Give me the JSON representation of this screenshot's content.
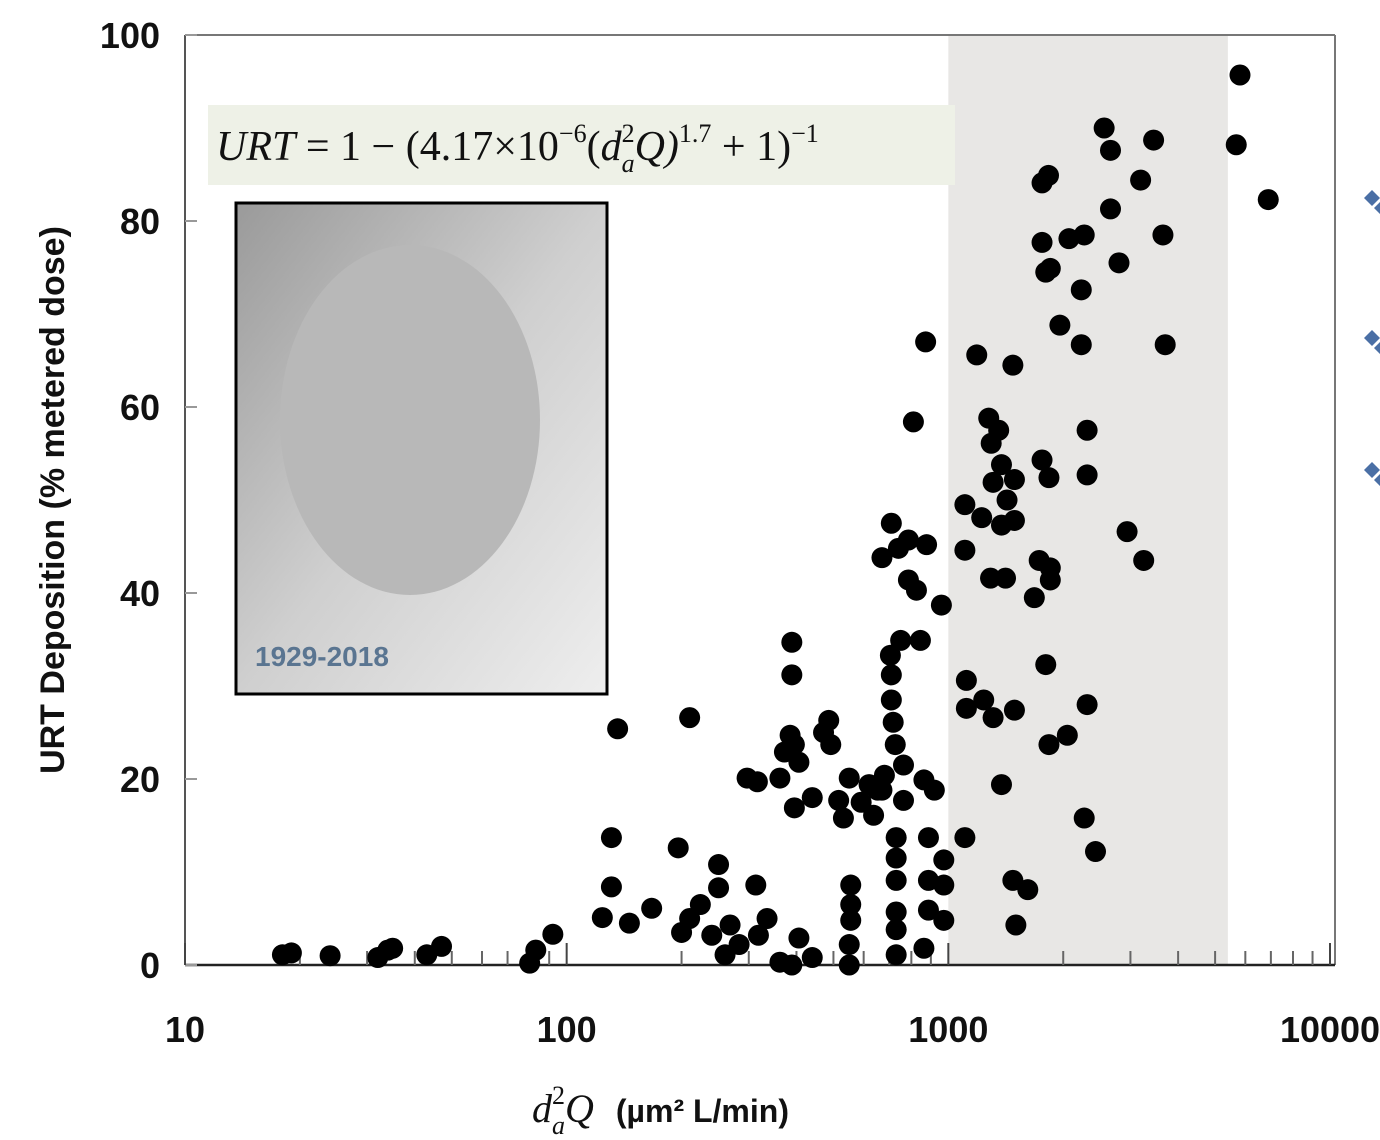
{
  "chart_data": {
    "type": "scatter",
    "xlabel": {
      "var": "d",
      "sup": "2",
      "sub": "a",
      "q": "Q",
      "units": "(µm² L/min)"
    },
    "ylabel": "URT Deposition  (% metered dose)",
    "formula": {
      "lhs": "URT",
      "eq": " = 1 − (4.17×10",
      "exp1": "−6",
      "open": "(",
      "var": "d",
      "sup": "2",
      "sub": "a",
      "q": "Q)",
      "exp2": "1.7",
      "plus": " + 1)",
      "exp3": "−1"
    },
    "photo_caption": "1929-2018",
    "log_x": true,
    "xlim": [
      10,
      10000
    ],
    "xticks": [
      10,
      100,
      1000,
      10000
    ],
    "minor_xticks": [
      20,
      30,
      40,
      50,
      60,
      70,
      80,
      90,
      200,
      300,
      400,
      500,
      600,
      700,
      800,
      900,
      2000,
      3000,
      4000,
      5000,
      6000,
      7000,
      8000,
      9000
    ],
    "ylim": [
      0,
      100
    ],
    "yticks": [
      0,
      20,
      40,
      60,
      80,
      100
    ],
    "shaded_band": [
      1000,
      5400
    ],
    "band_color": "#e8e7e5",
    "color": "#000000",
    "x": [
      18,
      19,
      24,
      32,
      34,
      35,
      43,
      47,
      80,
      83,
      92,
      136,
      131,
      131,
      124,
      146,
      167,
      196,
      200,
      210,
      210,
      224,
      240,
      250,
      250,
      260,
      268,
      283,
      297,
      316,
      313,
      318,
      335,
      362,
      372,
      385,
      389,
      389,
      395,
      395,
      406,
      406,
      362,
      389,
      440,
      440,
      471,
      486,
      492,
      516,
      531,
      550,
      555,
      555,
      555,
      550,
      550,
      591,
      620,
      637,
      653,
      670,
      680,
      705,
      709,
      709,
      717,
      726,
      709,
      670,
      740,
      750,
      763,
      763,
      730,
      730,
      730,
      730,
      730,
      730,
      786,
      786,
      810,
      825,
      845,
      863,
      872,
      877,
      887,
      887,
      887,
      919,
      959,
      973,
      973,
      863,
      973,
      1105,
      1105,
      1105,
      1115,
      1115,
      1187,
      1223,
      1238,
      1276,
      1295,
      1310,
      1290,
      1310,
      1355,
      1378,
      1378,
      1378,
      1412,
      1425,
      1476,
      1490,
      1490,
      1476,
      1503,
      1615,
      1680,
      1730,
      1760,
      1800,
      1760,
      1830,
      1760,
      1800,
      1850,
      1835,
      1850,
      1850,
      1835,
      1960,
      2050,
      2070,
      2270,
      2230,
      2230,
      2310,
      2310,
      2310,
      2270,
      2430,
      2560,
      2660,
      2660,
      2800,
      2940,
      3190,
      3250,
      3450,
      3650,
      3700,
      5680,
      5810,
      6890,
      1490
    ],
    "values": [
      1.1,
      1.3,
      1,
      0.8,
      1.6,
      1.8,
      1.1,
      2,
      0.2,
      1.6,
      3.3,
      25.4,
      13.7,
      8.4,
      5.1,
      4.5,
      6.1,
      12.6,
      3.5,
      26.6,
      5,
      6.5,
      3.2,
      10.8,
      8.3,
      1.1,
      4.3,
      2.2,
      20.1,
      19.7,
      8.6,
      3.2,
      5,
      20.1,
      22.9,
      24.7,
      34.7,
      31.2,
      23.7,
      16.9,
      21.8,
      2.9,
      0.3,
      0,
      0.8,
      18,
      25,
      26.3,
      23.7,
      17.7,
      15.8,
      20.1,
      8.6,
      6.5,
      4.8,
      2.2,
      0,
      17.5,
      19.4,
      16.1,
      18.8,
      18.8,
      20.4,
      33.3,
      31.2,
      28.5,
      26.1,
      23.7,
      47.5,
      43.8,
      44.8,
      34.9,
      21.5,
      17.7,
      13.7,
      11.5,
      9.1,
      5.7,
      3.8,
      1.1,
      45.7,
      41.4,
      58.4,
      40.3,
      34.9,
      19.9,
      67,
      45.2,
      13.7,
      9.1,
      5.9,
      18.8,
      38.7,
      11.3,
      8.6,
      1.8,
      4.8,
      13.7,
      49.5,
      44.6,
      30.6,
      27.6,
      65.6,
      48.1,
      28.5,
      58.8,
      56.1,
      51.9,
      41.6,
      26.6,
      57.5,
      53.8,
      47.3,
      19.4,
      41.6,
      50,
      64.5,
      47.8,
      27.4,
      9.1,
      4.3,
      8.1,
      39.5,
      43.5,
      54.3,
      32.3,
      84.1,
      84.9,
      77.7,
      74.5,
      74.9,
      52.4,
      42.7,
      41.4,
      23.7,
      68.8,
      24.7,
      78.1,
      78.5,
      72.6,
      66.7,
      57.5,
      52.7,
      28,
      15.8,
      12.2,
      90,
      87.6,
      81.3,
      75.5,
      46.6,
      84.4,
      43.5,
      88.7,
      78.5,
      66.7,
      88.2,
      95.7,
      82.3,
      52.2
    ]
  }
}
